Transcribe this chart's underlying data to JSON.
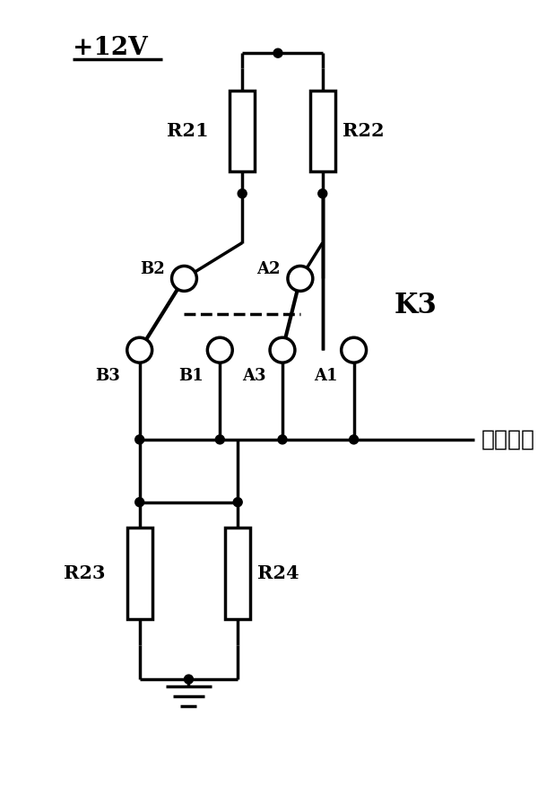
{
  "background_color": "#ffffff",
  "line_color": "#000000",
  "line_width": 2.5,
  "labels": {
    "power": "+12V",
    "R21": "R21",
    "R22": "R22",
    "R23": "R23",
    "R24": "R24",
    "K3": "K3",
    "B2": "B2",
    "B3": "B3",
    "B1": "B1",
    "A2": "A2",
    "A3": "A3",
    "A1": "A1",
    "status": "状态信号"
  }
}
